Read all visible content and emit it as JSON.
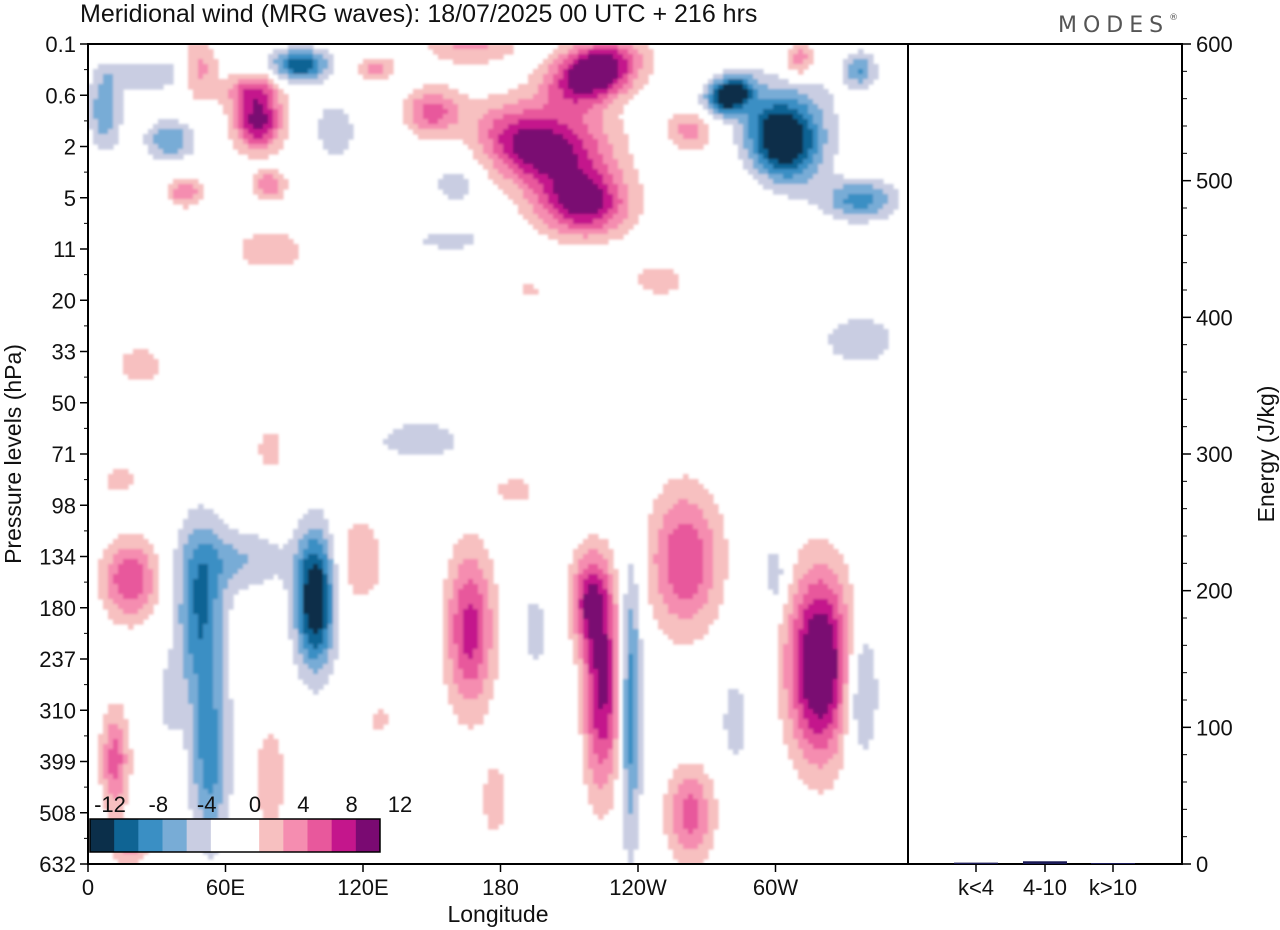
{
  "chart_data": [
    {
      "type": "heatmap",
      "title": "Meridional wind (MRG waves):  18/07/2025  00 UTC  + 216 hrs",
      "xlabel": "Longitude",
      "ylabel": "Pressure levels (hPa)",
      "x_ticks": [
        "0",
        "60E",
        "120E",
        "180",
        "120W",
        "60W"
      ],
      "y_ticks": [
        "0.1",
        "0.6",
        "2",
        "5",
        "11",
        "20",
        "33",
        "50",
        "71",
        "98",
        "134",
        "180",
        "237",
        "310",
        "399",
        "508",
        "632"
      ],
      "colorbar": {
        "labels": [
          "-12",
          "-8",
          "-4",
          "0",
          "4",
          "8",
          "12"
        ],
        "colors": [
          "#0b2f4a",
          "#0f6494",
          "#3a8fc4",
          "#78acd6",
          "#c9cde2",
          "#ffffff",
          "#ffffff",
          "#f7c0c0",
          "#f58db0",
          "#e8589c",
          "#c4168c",
          "#7a0a72"
        ]
      },
      "features": [
        {
          "kind": "positive",
          "lon": 200,
          "level": 1.2,
          "peak": 13
        },
        {
          "kind": "positive",
          "lon": 207,
          "level": 4,
          "peak": 9
        },
        {
          "kind": "positive",
          "lon": 71,
          "level": 1.2,
          "peak": 10
        },
        {
          "kind": "negative",
          "lon": 266,
          "level": 0.6,
          "peak": -14
        },
        {
          "kind": "negative",
          "lon": 283,
          "level": 2,
          "peak": -11
        },
        {
          "kind": "negative",
          "lon": 96,
          "level": 180,
          "peak": -12
        },
        {
          "kind": "negative",
          "lon": 41,
          "level": 180,
          "peak": -7
        },
        {
          "kind": "negative",
          "lon": 233,
          "level": 300,
          "peak": -7
        },
        {
          "kind": "positive",
          "lon": 306,
          "level": 250,
          "peak": 12
        },
        {
          "kind": "positive",
          "lon": 220,
          "level": 300,
          "peak": 10
        },
        {
          "kind": "positive",
          "lon": 261,
          "level": 150,
          "peak": 7
        },
        {
          "kind": "positive",
          "lon": 168,
          "level": 220,
          "peak": 8
        },
        {
          "kind": "positive",
          "lon": 16,
          "level": 150,
          "peak": 7
        },
        {
          "kind": "positive",
          "lon": 258,
          "level": 560,
          "peak": 7
        }
      ]
    },
    {
      "type": "bar",
      "categories": [
        "k<4",
        "4-10",
        "k>10"
      ],
      "values": [
        1,
        2,
        0.5
      ],
      "ylabel": "Energy (J/kg)",
      "y_ticks": [
        "0",
        "100",
        "200",
        "300",
        "400",
        "500",
        "600"
      ],
      "ylim": [
        0,
        600
      ],
      "bar_color": "#1a1a55"
    }
  ],
  "logo": {
    "text": "MODES",
    "mark": "®"
  }
}
